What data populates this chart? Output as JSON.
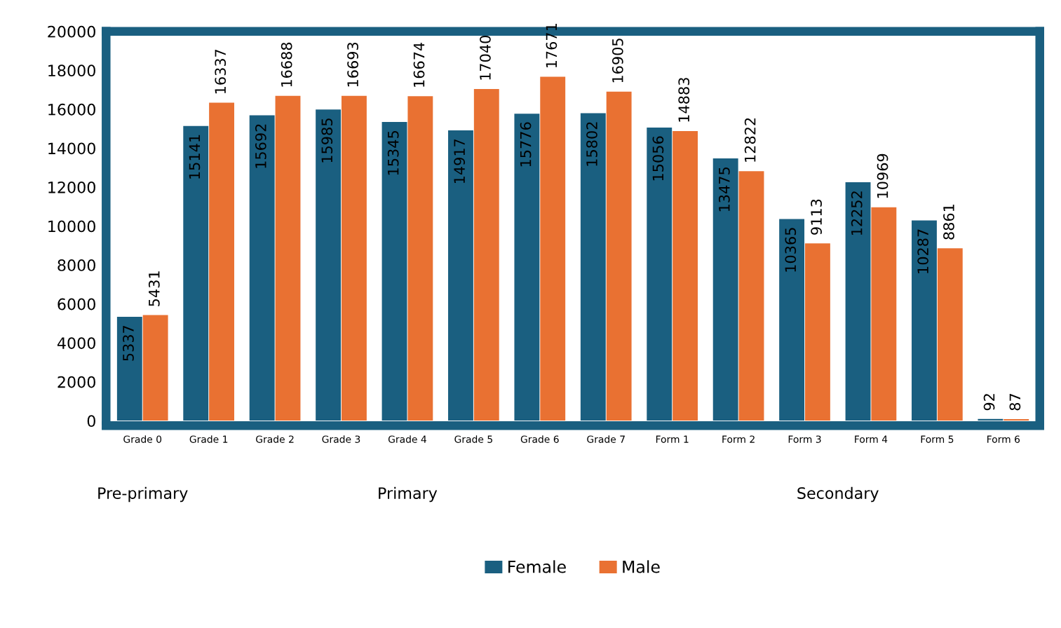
{
  "chart_data": {
    "type": "bar",
    "categories": [
      "Grade 0",
      "Grade 1",
      "Grade 2",
      "Grade 3",
      "Grade 4",
      "Grade 5",
      "Grade 6",
      "Grade 7",
      "Form 1",
      "Form 2",
      "Form 3",
      "Form 4",
      "Form 5",
      "Form 6"
    ],
    "series": [
      {
        "name": "Female",
        "color": "#1a5f80",
        "values": [
          5337,
          15141,
          15692,
          15985,
          15345,
          14917,
          15776,
          15802,
          15056,
          13475,
          10365,
          12252,
          10287,
          92
        ]
      },
      {
        "name": "Male",
        "color": "#e97132",
        "values": [
          5431,
          16337,
          16688,
          16693,
          16674,
          17040,
          17671,
          16905,
          14883,
          12822,
          9113,
          10969,
          8861,
          87
        ]
      }
    ],
    "ylim": [
      0,
      20000
    ],
    "yticks": [
      0,
      2000,
      4000,
      6000,
      8000,
      10000,
      12000,
      14000,
      16000,
      18000,
      20000
    ],
    "data_labels": true,
    "grid": false,
    "legend": "bottom",
    "annotations": [
      "Pre-primary",
      "Primary",
      "Secondary"
    ]
  }
}
